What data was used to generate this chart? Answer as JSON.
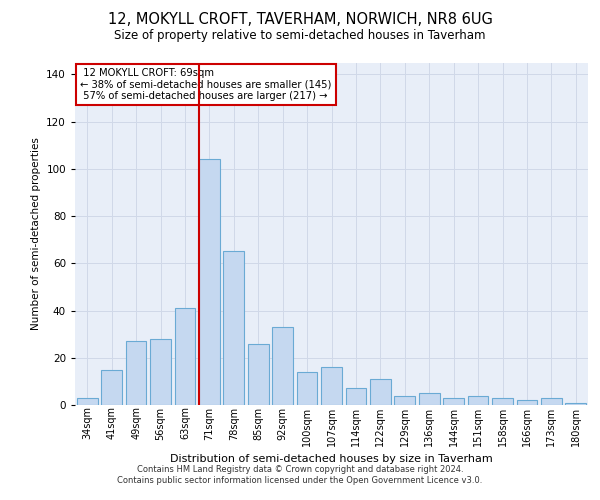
{
  "title_line1": "12, MOKYLL CROFT, TAVERHAM, NORWICH, NR8 6UG",
  "title_line2": "Size of property relative to semi-detached houses in Taverham",
  "xlabel": "Distribution of semi-detached houses by size in Taverham",
  "ylabel": "Number of semi-detached properties",
  "categories": [
    "34sqm",
    "41sqm",
    "49sqm",
    "56sqm",
    "63sqm",
    "71sqm",
    "78sqm",
    "85sqm",
    "92sqm",
    "100sqm",
    "107sqm",
    "114sqm",
    "122sqm",
    "129sqm",
    "136sqm",
    "144sqm",
    "151sqm",
    "158sqm",
    "166sqm",
    "173sqm",
    "180sqm"
  ],
  "values": [
    3,
    15,
    27,
    28,
    41,
    104,
    65,
    26,
    33,
    14,
    16,
    7,
    11,
    4,
    5,
    3,
    4,
    3,
    2,
    3,
    1
  ],
  "bar_color": "#c5d8f0",
  "bar_edge_color": "#6aaad4",
  "highlight_index": 5,
  "property_size": "69sqm",
  "property_name": "12 MOKYLL CROFT",
  "pct_smaller": 38,
  "count_smaller": 145,
  "pct_larger": 57,
  "count_larger": 217,
  "annotation_box_color": "#ffffff",
  "annotation_box_edge": "#cc0000",
  "vline_color": "#cc0000",
  "ylim": [
    0,
    145
  ],
  "yticks": [
    0,
    20,
    40,
    60,
    80,
    100,
    120,
    140
  ],
  "grid_color": "#d0d8e8",
  "background_color": "#e8eef8",
  "footer_line1": "Contains HM Land Registry data © Crown copyright and database right 2024.",
  "footer_line2": "Contains public sector information licensed under the Open Government Licence v3.0."
}
